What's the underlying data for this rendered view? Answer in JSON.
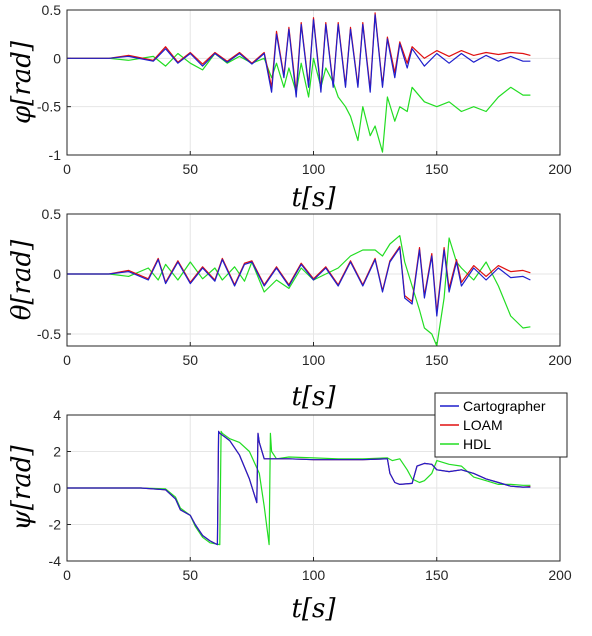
{
  "chart_data": [
    {
      "type": "line",
      "ylabel": "φ[rad]",
      "xlabel": "t[s]",
      "xlim": [
        0,
        200
      ],
      "ylim": [
        -1,
        0.5
      ],
      "grid": true,
      "xticks": [
        "0",
        "50",
        "100",
        "150",
        "200"
      ],
      "yticks": [
        "0.5",
        "0",
        "-0.5",
        "-1"
      ],
      "series": [
        {
          "name": "Cartographer",
          "color": "#1f1fcc",
          "x": [
            0,
            17,
            25,
            35,
            40,
            45,
            50,
            55,
            60,
            65,
            70,
            75,
            80,
            83,
            85,
            88,
            90,
            93,
            95,
            98,
            100,
            103,
            105,
            108,
            110,
            113,
            115,
            118,
            120,
            123,
            125,
            128,
            130,
            133,
            135,
            138,
            140,
            145,
            150,
            155,
            160,
            165,
            170,
            175,
            180,
            185,
            188
          ],
          "y": [
            0,
            0,
            0.02,
            -0.03,
            0.1,
            -0.05,
            0.05,
            -0.08,
            0.05,
            -0.04,
            0.05,
            -0.06,
            0.05,
            -0.35,
            0.25,
            -0.2,
            0.3,
            -0.4,
            0.35,
            -0.3,
            0.4,
            -0.35,
            0.35,
            -0.3,
            0.35,
            -0.3,
            0.3,
            -0.3,
            0.35,
            -0.35,
            0.45,
            -0.3,
            0.2,
            -0.2,
            0.15,
            -0.1,
            0.1,
            -0.08,
            0.05,
            -0.05,
            0.05,
            -0.04,
            0.03,
            -0.03,
            0.02,
            -0.03,
            -0.03
          ]
        },
        {
          "name": "LOAM",
          "color": "#e01010",
          "x": [
            0,
            17,
            25,
            35,
            40,
            45,
            50,
            55,
            60,
            65,
            70,
            75,
            80,
            83,
            85,
            88,
            90,
            93,
            95,
            98,
            100,
            103,
            105,
            108,
            110,
            113,
            115,
            118,
            120,
            123,
            125,
            128,
            130,
            133,
            135,
            138,
            140,
            145,
            150,
            155,
            160,
            165,
            170,
            175,
            180,
            185,
            188
          ],
          "y": [
            0,
            0,
            0.03,
            -0.02,
            0.12,
            -0.04,
            0.06,
            -0.06,
            0.06,
            -0.03,
            0.06,
            -0.05,
            0.06,
            -0.3,
            0.28,
            -0.18,
            0.32,
            -0.35,
            0.37,
            -0.28,
            0.42,
            -0.32,
            0.37,
            -0.28,
            0.37,
            -0.28,
            0.32,
            -0.28,
            0.37,
            -0.32,
            0.47,
            -0.28,
            0.22,
            -0.15,
            0.17,
            -0.05,
            0.12,
            0,
            0.08,
            0.02,
            0.08,
            0.03,
            0.06,
            0.04,
            0.06,
            0.05,
            0.03
          ]
        },
        {
          "name": "HDL",
          "color": "#22dd22",
          "x": [
            0,
            17,
            25,
            35,
            40,
            45,
            50,
            55,
            60,
            65,
            70,
            75,
            80,
            83,
            85,
            88,
            90,
            93,
            95,
            98,
            100,
            103,
            105,
            108,
            110,
            113,
            115,
            118,
            120,
            123,
            125,
            128,
            130,
            133,
            135,
            138,
            140,
            145,
            150,
            155,
            160,
            165,
            170,
            175,
            180,
            185,
            188
          ],
          "y": [
            0,
            0,
            -0.02,
            0.02,
            -0.08,
            0.05,
            -0.05,
            -0.12,
            0.05,
            -0.05,
            0.02,
            -0.05,
            0,
            -0.2,
            -0.05,
            -0.3,
            -0.1,
            -0.35,
            -0.05,
            -0.4,
            0,
            -0.3,
            -0.1,
            -0.25,
            -0.4,
            -0.5,
            -0.6,
            -0.85,
            -0.5,
            -0.8,
            -0.7,
            -0.97,
            -0.4,
            -0.65,
            -0.5,
            -0.55,
            -0.3,
            -0.45,
            -0.5,
            -0.45,
            -0.55,
            -0.5,
            -0.55,
            -0.4,
            -0.3,
            -0.38,
            -0.38
          ]
        }
      ]
    },
    {
      "type": "line",
      "ylabel": "θ[rad]",
      "xlabel": "t[s]",
      "xlim": [
        0,
        200
      ],
      "ylim": [
        -0.6,
        0.5
      ],
      "grid": true,
      "xticks": [
        "0",
        "50",
        "100",
        "150",
        "200"
      ],
      "yticks": [
        "0.5",
        "0",
        "-0.5"
      ],
      "series": [
        {
          "name": "Cartographer",
          "color": "#1f1fcc",
          "x": [
            0,
            17,
            25,
            33,
            37,
            40,
            45,
            50,
            55,
            60,
            63,
            68,
            72,
            75,
            80,
            85,
            90,
            95,
            100,
            105,
            110,
            115,
            120,
            125,
            128,
            131,
            135,
            137,
            140,
            143,
            145,
            148,
            150,
            153,
            155,
            158,
            160,
            165,
            170,
            175,
            180,
            185,
            188
          ],
          "y": [
            0,
            0,
            0.02,
            -0.05,
            0.12,
            -0.08,
            0.1,
            -0.08,
            0.05,
            -0.06,
            0.12,
            -0.1,
            0.08,
            0.1,
            -0.1,
            0.05,
            -0.1,
            0.08,
            -0.05,
            0.05,
            -0.1,
            0.1,
            -0.1,
            0.12,
            -0.15,
            0.1,
            0.22,
            -0.2,
            -0.25,
            0.2,
            -0.2,
            0.15,
            -0.35,
            0.2,
            -0.15,
            0.1,
            -0.1,
            0.05,
            -0.05,
            0.05,
            -0.03,
            -0.02,
            -0.05
          ]
        },
        {
          "name": "LOAM",
          "color": "#e01010",
          "x": [
            0,
            17,
            25,
            33,
            37,
            40,
            45,
            50,
            55,
            60,
            63,
            68,
            72,
            75,
            80,
            85,
            90,
            95,
            100,
            105,
            110,
            115,
            120,
            125,
            128,
            131,
            135,
            137,
            140,
            143,
            145,
            148,
            150,
            153,
            155,
            158,
            160,
            165,
            170,
            175,
            180,
            185,
            188
          ],
          "y": [
            0,
            0,
            0.03,
            -0.04,
            0.13,
            -0.07,
            0.11,
            -0.07,
            0.06,
            -0.05,
            0.13,
            -0.09,
            0.09,
            0.11,
            -0.09,
            0.06,
            -0.09,
            0.09,
            -0.04,
            0.06,
            -0.09,
            0.11,
            -0.09,
            0.13,
            -0.14,
            0.11,
            0.23,
            -0.18,
            -0.23,
            0.22,
            -0.18,
            0.17,
            -0.32,
            0.22,
            -0.12,
            0.12,
            -0.07,
            0.07,
            -0.02,
            0.07,
            0.02,
            0.03,
            0.01
          ]
        },
        {
          "name": "HDL",
          "color": "#22dd22",
          "x": [
            0,
            17,
            25,
            33,
            37,
            40,
            45,
            50,
            55,
            60,
            63,
            68,
            72,
            75,
            80,
            85,
            90,
            95,
            100,
            105,
            110,
            115,
            120,
            125,
            128,
            131,
            135,
            137,
            140,
            143,
            145,
            148,
            150,
            153,
            155,
            158,
            160,
            165,
            170,
            175,
            180,
            185,
            188
          ],
          "y": [
            0,
            0,
            -0.02,
            0.05,
            -0.05,
            0.08,
            -0.05,
            0.1,
            -0.04,
            0.05,
            -0.05,
            0.06,
            -0.06,
            0.1,
            -0.15,
            -0.05,
            -0.12,
            0.05,
            -0.05,
            0,
            0.05,
            0.15,
            0.2,
            0.2,
            0.15,
            0.25,
            0.32,
            0.1,
            -0.1,
            -0.3,
            -0.45,
            -0.5,
            -0.6,
            -0.2,
            0.3,
            0.1,
            0.05,
            -0.05,
            0.1,
            -0.1,
            -0.35,
            -0.45,
            -0.44
          ]
        }
      ]
    },
    {
      "type": "line",
      "ylabel": "ψ[rad]",
      "xlabel": "t[s]",
      "xlim": [
        0,
        200
      ],
      "ylim": [
        -4,
        4
      ],
      "grid": true,
      "xticks": [
        "0",
        "50",
        "100",
        "150",
        "200"
      ],
      "yticks": [
        "4",
        "2",
        "0",
        "-2",
        "-4"
      ],
      "legend": {
        "placement": "top-right",
        "entries": [
          "Cartographer",
          "LOAM",
          "HDL"
        ]
      },
      "series": [
        {
          "name": "Cartographer",
          "color": "#1f1fcc",
          "x": [
            0,
            30,
            40,
            44,
            46,
            50,
            52,
            55,
            58,
            61,
            61.5,
            62,
            64,
            66,
            70,
            74,
            77,
            77.5,
            78,
            80,
            85,
            90,
            100,
            110,
            120,
            130,
            131,
            133,
            135,
            140,
            142,
            145,
            148,
            150,
            155,
            160,
            165,
            170,
            175,
            180,
            185,
            188
          ],
          "y": [
            0,
            0,
            -0.1,
            -0.6,
            -1.2,
            -1.5,
            -2,
            -2.6,
            -2.9,
            -3.1,
            3.1,
            3.0,
            2.8,
            2.6,
            1.8,
            0.5,
            -0.8,
            3.0,
            2.5,
            1.6,
            1.6,
            1.6,
            1.55,
            1.55,
            1.55,
            1.6,
            0.8,
            0.3,
            0.2,
            0.25,
            1.2,
            1.35,
            1.3,
            1.0,
            0.9,
            1.0,
            0.8,
            0.5,
            0.3,
            0.1,
            0.05,
            0.05
          ]
        },
        {
          "name": "LOAM",
          "color": "#e01010",
          "x": [
            0,
            30,
            40,
            44,
            46,
            50,
            52,
            55,
            58,
            61,
            61.5,
            62,
            64,
            66,
            70,
            74,
            77,
            77.5,
            78,
            80,
            85,
            90,
            100,
            110,
            120,
            130,
            131,
            133,
            135,
            140,
            142,
            145,
            148,
            150,
            155,
            160,
            165,
            170,
            175,
            180,
            185,
            188
          ],
          "y": [
            0,
            0,
            -0.1,
            -0.6,
            -1.2,
            -1.5,
            -2,
            -2.6,
            -2.9,
            -3.1,
            3.1,
            3.0,
            2.8,
            2.6,
            1.8,
            0.5,
            -0.8,
            3.0,
            2.5,
            1.6,
            1.6,
            1.6,
            1.55,
            1.55,
            1.55,
            1.6,
            0.8,
            0.3,
            0.2,
            0.25,
            1.2,
            1.35,
            1.3,
            1.0,
            0.9,
            1.0,
            0.8,
            0.5,
            0.3,
            0.1,
            0.05,
            0.08
          ]
        },
        {
          "name": "HDL",
          "color": "#22dd22",
          "x": [
            0,
            30,
            40,
            44,
            46,
            50,
            52,
            55,
            58,
            62,
            62.5,
            63,
            66,
            70,
            74,
            78,
            80,
            82,
            82.5,
            83,
            85,
            90,
            100,
            110,
            120,
            130,
            132,
            135,
            138,
            140,
            143,
            145,
            148,
            150,
            155,
            160,
            165,
            170,
            175,
            180,
            185,
            188
          ],
          "y": [
            0,
            0,
            -0.05,
            -0.5,
            -1.1,
            -1.5,
            -2.1,
            -2.7,
            -3.0,
            -3.1,
            3.1,
            3.0,
            2.7,
            2.5,
            2.0,
            0.8,
            -1.0,
            -3.1,
            3.0,
            2.0,
            1.6,
            1.7,
            1.65,
            1.6,
            1.6,
            1.65,
            1.5,
            1.6,
            1.0,
            0.5,
            0.3,
            0.4,
            0.8,
            1.5,
            1.3,
            1.2,
            0.6,
            0.4,
            0.2,
            0.2,
            0.15,
            0.15
          ]
        }
      ]
    }
  ]
}
